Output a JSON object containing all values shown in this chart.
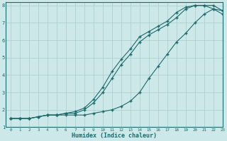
{
  "xlabel": "Humidex (Indice chaleur)",
  "ylabel": "",
  "bg_color": "#cde8e8",
  "grid_color": "#aacccc",
  "line_color": "#1a6b6b",
  "xlim": [
    -0.5,
    23
  ],
  "ylim": [
    1,
    8.2
  ],
  "xticks": [
    0,
    1,
    2,
    3,
    4,
    5,
    6,
    7,
    8,
    9,
    10,
    11,
    12,
    13,
    14,
    15,
    16,
    17,
    18,
    19,
    20,
    21,
    22,
    23
  ],
  "yticks": [
    1,
    2,
    3,
    4,
    5,
    6,
    7,
    8
  ],
  "line1_x": [
    0,
    1,
    2,
    3,
    4,
    5,
    6,
    7,
    8,
    9,
    10,
    11,
    12,
    13,
    14,
    15,
    16,
    17,
    18,
    19,
    20,
    21,
    22,
    23
  ],
  "line1_y": [
    1.5,
    1.5,
    1.5,
    1.6,
    1.7,
    1.7,
    1.8,
    1.8,
    2.0,
    2.4,
    3.0,
    3.8,
    4.6,
    5.2,
    5.9,
    6.3,
    6.6,
    6.9,
    7.3,
    7.8,
    8.0,
    8.0,
    8.0,
    7.7
  ],
  "line2_x": [
    0,
    1,
    2,
    3,
    4,
    5,
    6,
    7,
    8,
    9,
    10,
    11,
    12,
    13,
    14,
    15,
    16,
    17,
    18,
    19,
    20,
    21,
    22,
    23
  ],
  "line2_y": [
    1.5,
    1.5,
    1.5,
    1.6,
    1.7,
    1.7,
    1.8,
    1.9,
    2.1,
    2.6,
    3.3,
    4.2,
    4.9,
    5.5,
    6.2,
    6.5,
    6.8,
    7.1,
    7.6,
    7.9,
    8.0,
    8.0,
    7.8,
    7.5
  ],
  "line3_x": [
    0,
    1,
    2,
    3,
    4,
    5,
    6,
    7,
    8,
    9,
    10,
    11,
    12,
    13,
    14,
    15,
    16,
    17,
    18,
    19,
    20,
    21,
    22,
    23
  ],
  "line3_y": [
    1.5,
    1.5,
    1.5,
    1.6,
    1.7,
    1.7,
    1.7,
    1.7,
    1.7,
    1.8,
    1.9,
    2.0,
    2.2,
    2.5,
    3.0,
    3.8,
    4.5,
    5.2,
    5.9,
    6.4,
    7.0,
    7.5,
    7.8,
    7.7
  ]
}
